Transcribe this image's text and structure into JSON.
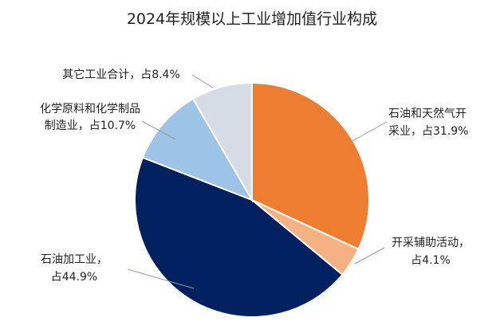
{
  "chart_data": {
    "type": "pie",
    "title": "2024年规模以上工业增加值行业构成",
    "slices": [
      {
        "label_lines": [
          "石油和天然气开",
          "采业，占31.9%"
        ],
        "value": 31.9,
        "color": "#ED7D31"
      },
      {
        "label_lines": [
          "开采辅助活动，",
          "占4.1%"
        ],
        "value": 4.1,
        "color": "#F4B183"
      },
      {
        "label_lines": [
          "石油加工业，",
          "占44.9%"
        ],
        "value": 44.9,
        "color": "#002060"
      },
      {
        "label_lines": [
          "化学原料和化学制品",
          "制造业，占10.7%"
        ],
        "value": 10.7,
        "color": "#9DC3E6"
      },
      {
        "label_lines": [
          "其它工业合计，占8.4%"
        ],
        "value": 8.4,
        "color": "#D6DCE5"
      }
    ]
  }
}
